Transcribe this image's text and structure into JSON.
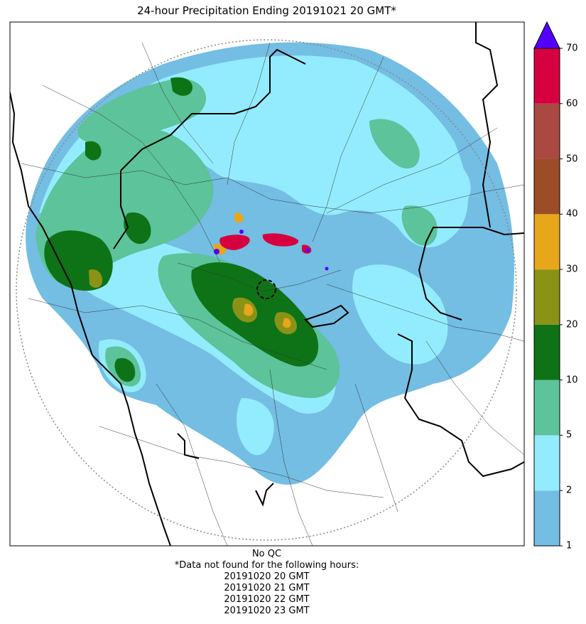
{
  "title": "24-hour Precipitation Ending 20191021 20 GMT*",
  "colorbar": {
    "levels": [
      1,
      2,
      5,
      10,
      20,
      30,
      40,
      50,
      60,
      70
    ],
    "colors": [
      "#74bde3",
      "#93ecfe",
      "#5cc39a",
      "#0e7317",
      "#8b9317",
      "#e8a61b",
      "#9c4d27",
      "#a94942",
      "#d60040"
    ],
    "over_color": "#5500ff",
    "labels": [
      "1",
      "2",
      "5",
      "10",
      "20",
      "30",
      "40",
      "50",
      "60",
      "70"
    ]
  },
  "footer": {
    "qc": "No QC",
    "missing_header": "*Data not found for the following hours:",
    "missing_hours": [
      "20191020 20 GMT",
      "20191020 21 GMT",
      "20191020 22 GMT",
      "20191020 23 GMT"
    ]
  }
}
